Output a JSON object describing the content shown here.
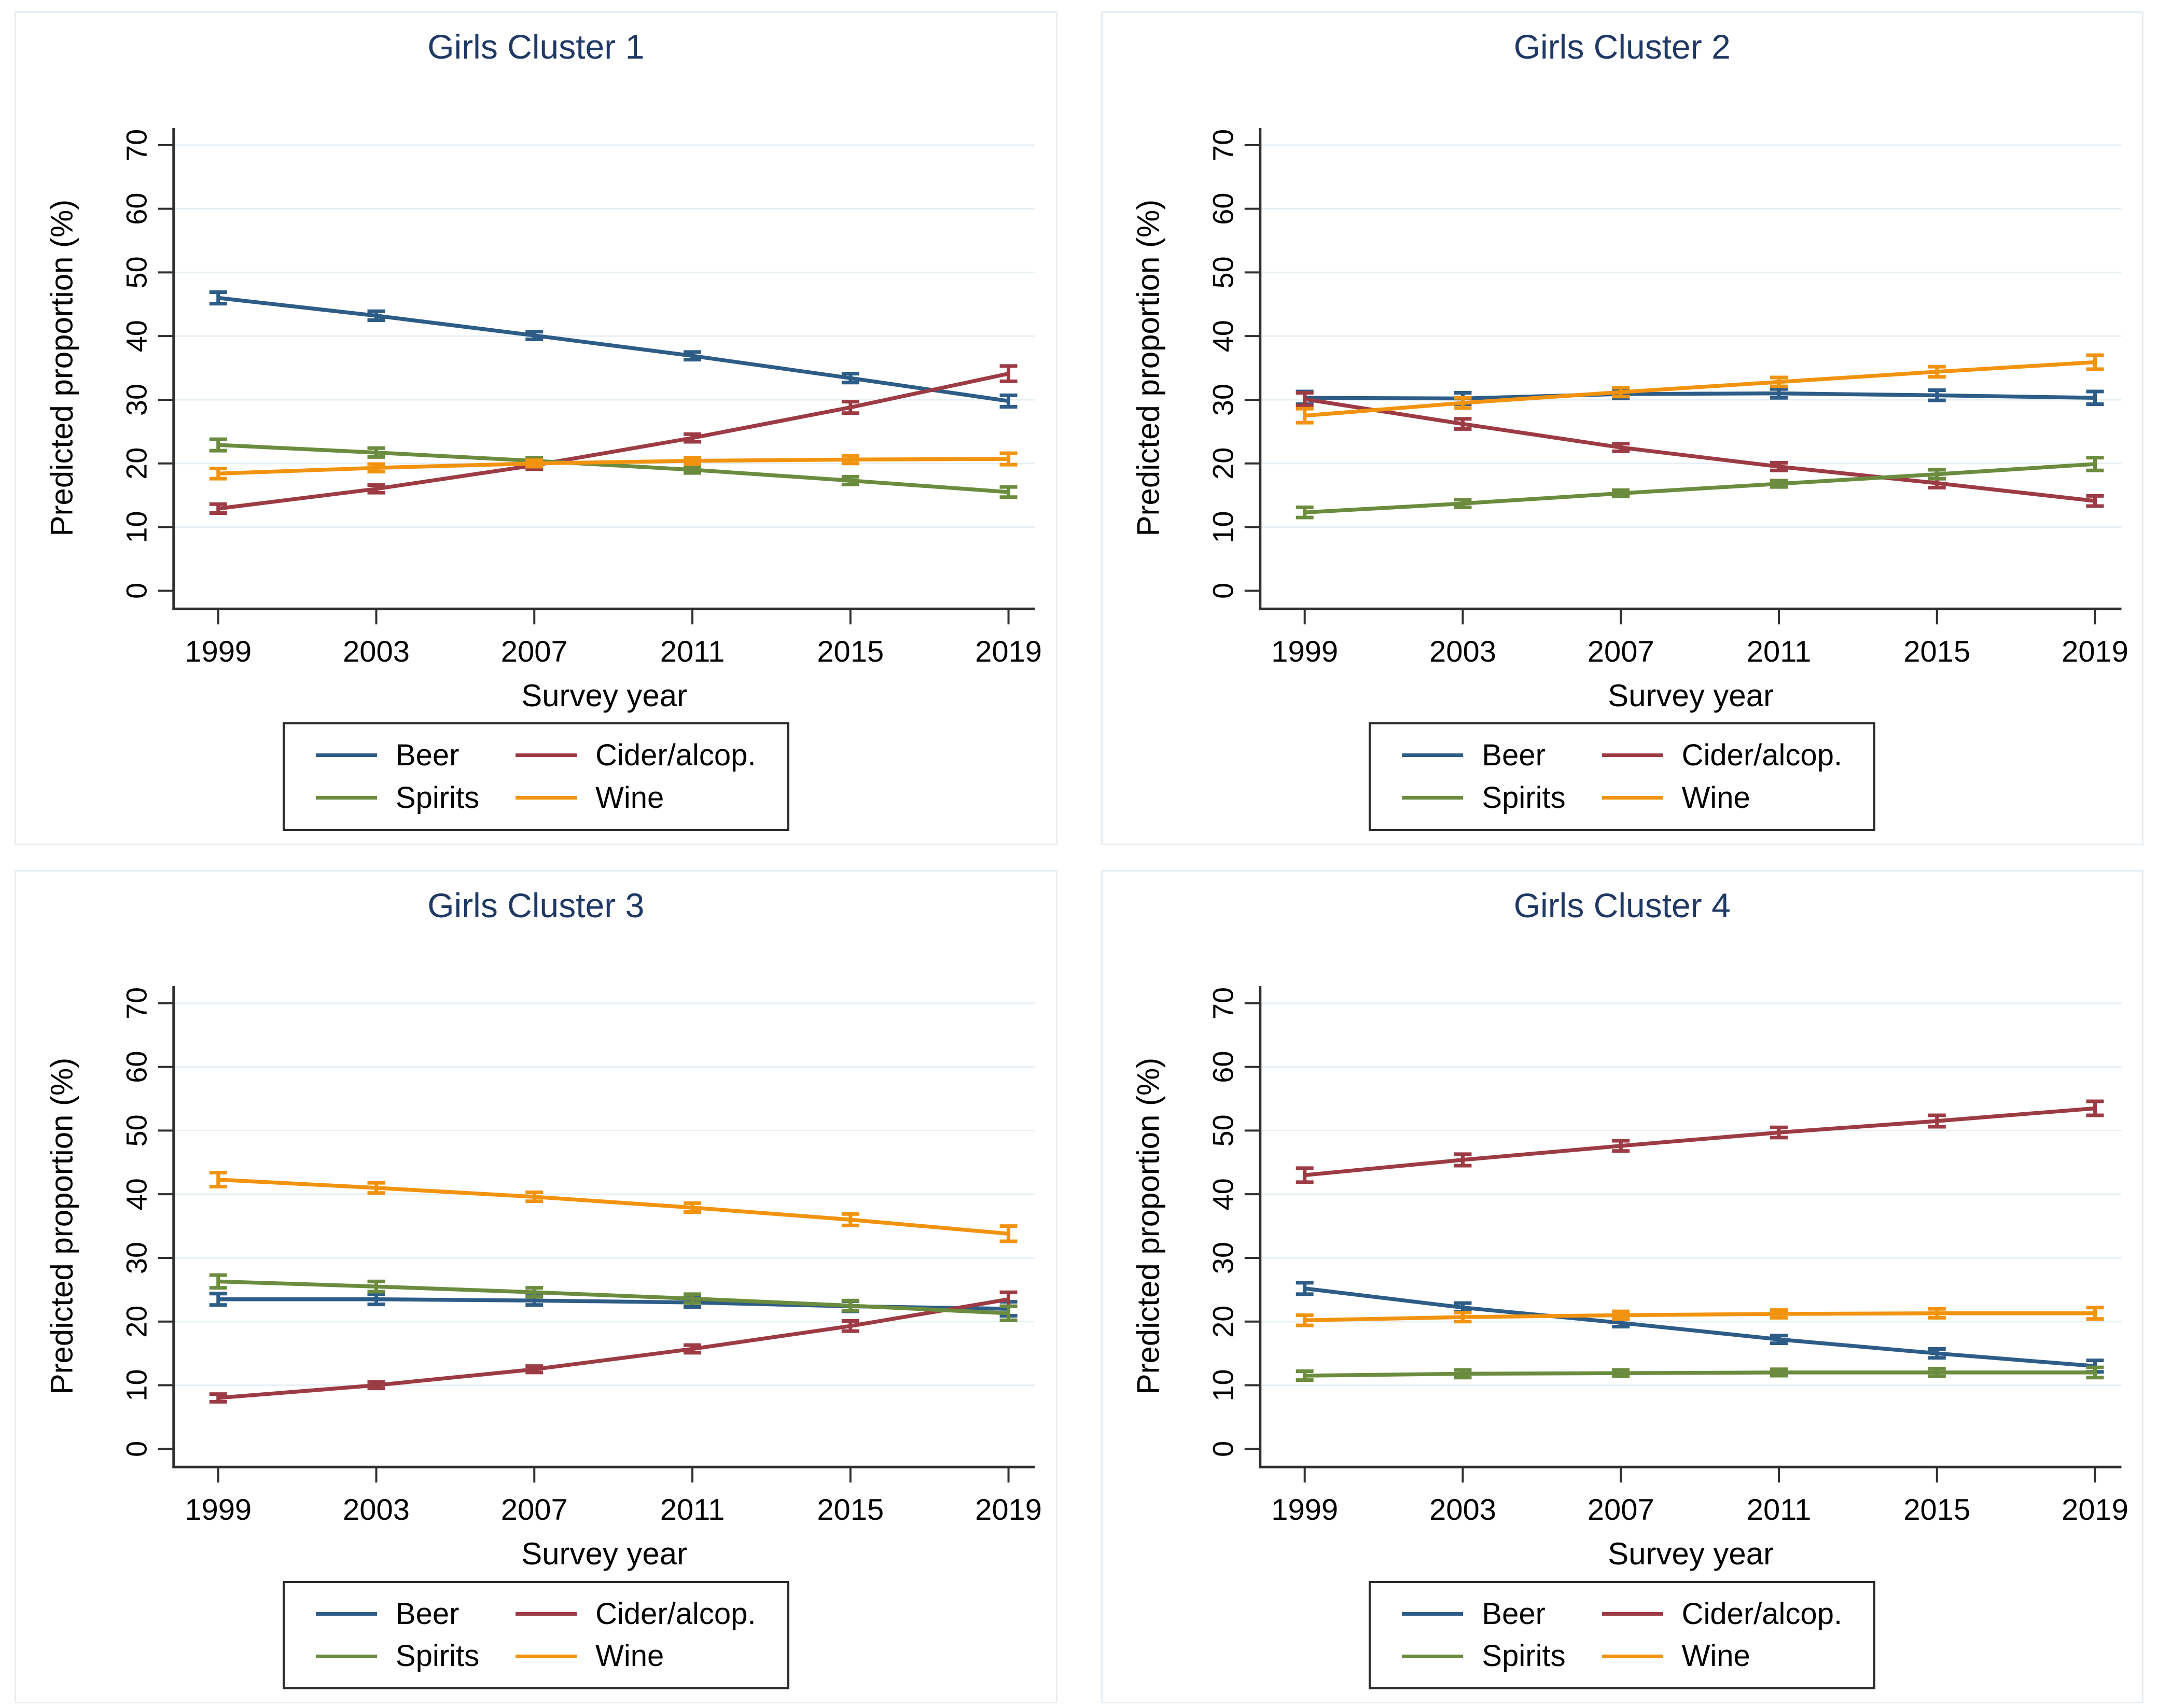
{
  "axes": {
    "xlabel": "Survey year",
    "ylabel": "Predicted proportion (%)",
    "ylim": [
      0,
      70
    ],
    "yticks": [
      0,
      10,
      20,
      30,
      40,
      50,
      60,
      70
    ],
    "xticks": [
      1999,
      2003,
      2007,
      2011,
      2015,
      2019
    ],
    "grid": "horizontal"
  },
  "style": {
    "title_color": "#1f3864",
    "axis_color": "#303030",
    "grid_color": "#e6eff4",
    "panel_border": "#e6edf3",
    "error_bar_cap_halfwidth": 17
  },
  "legend": {
    "position": "bottom",
    "items": [
      {
        "label": "Beer",
        "color": "#2d5c87"
      },
      {
        "label": "Cider/alcop.",
        "color": "#9d3b44"
      },
      {
        "label": "Spirits",
        "color": "#6b8c3e"
      },
      {
        "label": "Wine",
        "color": "#f2930f"
      }
    ]
  },
  "chart_data": [
    {
      "type": "line",
      "title": "Girls Cluster 1",
      "xlabel": "Survey year",
      "ylabel": "Predicted proportion (%)",
      "ylim": [
        0,
        70
      ],
      "x": [
        1999,
        2003,
        2007,
        2011,
        2015,
        2019
      ],
      "series": [
        {
          "name": "Beer",
          "color": "#2d5c87",
          "values": [
            46.0,
            43.2,
            40.1,
            36.9,
            33.4,
            29.8
          ],
          "ci": [
            0.9,
            0.7,
            0.6,
            0.6,
            0.7,
            0.9
          ]
        },
        {
          "name": "Cider/alcop.",
          "color": "#9d3b44",
          "values": [
            12.9,
            16.0,
            19.7,
            24.0,
            28.8,
            34.1
          ],
          "ci": [
            0.7,
            0.6,
            0.6,
            0.6,
            0.9,
            1.2
          ]
        },
        {
          "name": "Spirits",
          "color": "#6b8c3e",
          "values": [
            22.9,
            21.7,
            20.4,
            19.0,
            17.3,
            15.5
          ],
          "ci": [
            0.9,
            0.7,
            0.5,
            0.5,
            0.6,
            0.8
          ]
        },
        {
          "name": "Wine",
          "color": "#f2930f",
          "values": [
            18.4,
            19.3,
            20.0,
            20.4,
            20.6,
            20.7
          ],
          "ci": [
            0.8,
            0.6,
            0.5,
            0.5,
            0.6,
            0.9
          ]
        }
      ]
    },
    {
      "type": "line",
      "title": "Girls Cluster 2",
      "xlabel": "Survey year",
      "ylabel": "Predicted proportion (%)",
      "ylim": [
        0,
        70
      ],
      "x": [
        1999,
        2003,
        2007,
        2011,
        2015,
        2019
      ],
      "series": [
        {
          "name": "Beer",
          "color": "#2d5c87",
          "values": [
            30.3,
            30.2,
            30.9,
            31.0,
            30.7,
            30.3
          ],
          "ci": [
            1.0,
            0.9,
            0.7,
            0.7,
            0.8,
            1.0
          ]
        },
        {
          "name": "Cider/alcop.",
          "color": "#9d3b44",
          "values": [
            30.1,
            26.2,
            22.5,
            19.5,
            16.9,
            14.1
          ],
          "ci": [
            1.0,
            0.8,
            0.6,
            0.6,
            0.7,
            0.8
          ]
        },
        {
          "name": "Spirits",
          "color": "#6b8c3e",
          "values": [
            12.3,
            13.7,
            15.3,
            16.8,
            18.3,
            19.9
          ],
          "ci": [
            0.8,
            0.6,
            0.5,
            0.5,
            0.7,
            1.0
          ]
        },
        {
          "name": "Wine",
          "color": "#f2930f",
          "values": [
            27.5,
            29.5,
            31.2,
            32.8,
            34.4,
            35.9
          ],
          "ci": [
            1.1,
            0.8,
            0.7,
            0.7,
            0.8,
            1.1
          ]
        }
      ]
    },
    {
      "type": "line",
      "title": "Girls Cluster 3",
      "xlabel": "Survey year",
      "ylabel": "Predicted proportion (%)",
      "ylim": [
        0,
        70
      ],
      "x": [
        1999,
        2003,
        2007,
        2011,
        2015,
        2019
      ],
      "series": [
        {
          "name": "Beer",
          "color": "#2d5c87",
          "values": [
            23.5,
            23.5,
            23.3,
            23.0,
            22.4,
            22.0
          ],
          "ci": [
            0.9,
            0.8,
            0.7,
            0.7,
            0.8,
            1.1
          ]
        },
        {
          "name": "Cider/alcop.",
          "color": "#9d3b44",
          "values": [
            8.0,
            10.0,
            12.5,
            15.7,
            19.3,
            23.5
          ],
          "ci": [
            0.6,
            0.5,
            0.5,
            0.6,
            0.8,
            1.1
          ]
        },
        {
          "name": "Spirits",
          "color": "#6b8c3e",
          "values": [
            26.3,
            25.5,
            24.6,
            23.6,
            22.5,
            21.3
          ],
          "ci": [
            1.0,
            0.8,
            0.7,
            0.7,
            0.8,
            1.1
          ]
        },
        {
          "name": "Wine",
          "color": "#f2930f",
          "values": [
            42.3,
            41.0,
            39.6,
            37.9,
            36.0,
            33.8
          ],
          "ci": [
            1.1,
            0.8,
            0.7,
            0.7,
            0.9,
            1.2
          ]
        }
      ]
    },
    {
      "type": "line",
      "title": "Girls Cluster 4",
      "xlabel": "Survey year",
      "ylabel": "Predicted proportion (%)",
      "ylim": [
        0,
        70
      ],
      "x": [
        1999,
        2003,
        2007,
        2011,
        2015,
        2019
      ],
      "series": [
        {
          "name": "Beer",
          "color": "#2d5c87",
          "values": [
            25.2,
            22.2,
            19.8,
            17.2,
            15.0,
            13.0
          ],
          "ci": [
            0.9,
            0.7,
            0.6,
            0.6,
            0.7,
            0.9
          ]
        },
        {
          "name": "Cider/alcop.",
          "color": "#9d3b44",
          "values": [
            43.0,
            45.4,
            47.6,
            49.7,
            51.5,
            53.5
          ],
          "ci": [
            1.1,
            0.9,
            0.8,
            0.8,
            0.9,
            1.1
          ]
        },
        {
          "name": "Spirits",
          "color": "#6b8c3e",
          "values": [
            11.5,
            11.8,
            11.9,
            12.0,
            12.0,
            12.0
          ],
          "ci": [
            0.7,
            0.6,
            0.5,
            0.5,
            0.6,
            0.8
          ]
        },
        {
          "name": "Wine",
          "color": "#f2930f",
          "values": [
            20.2,
            20.7,
            21.0,
            21.2,
            21.3,
            21.3
          ],
          "ci": [
            0.8,
            0.7,
            0.6,
            0.6,
            0.7,
            0.9
          ]
        }
      ]
    }
  ]
}
